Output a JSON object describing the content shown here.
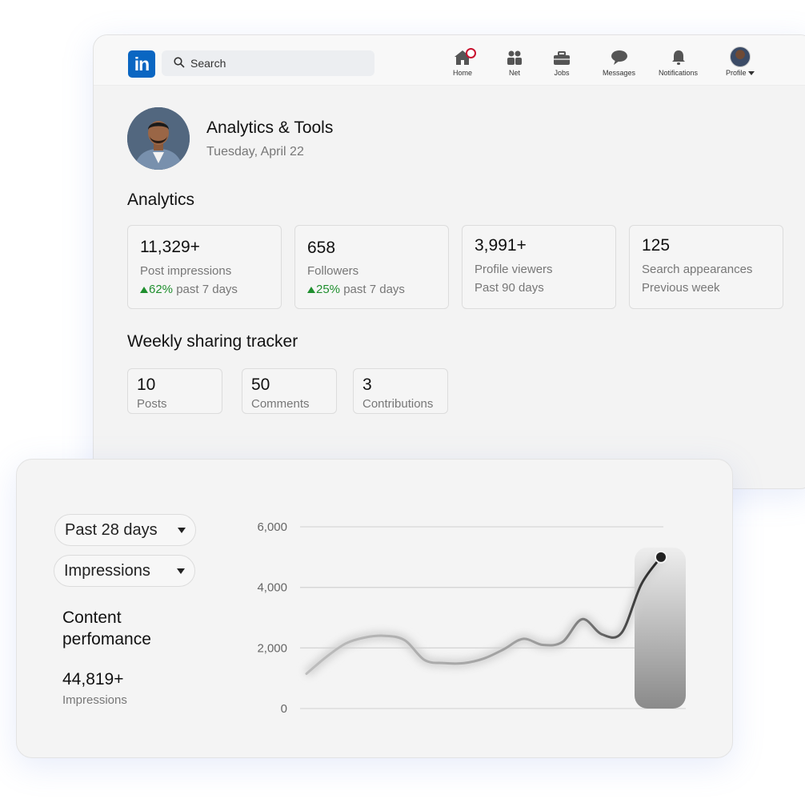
{
  "topbar": {
    "search_placeholder": "Search",
    "nav": [
      {
        "label": "Home",
        "icon": "home-icon"
      },
      {
        "label": "Net",
        "icon": "network-icon"
      },
      {
        "label": "Jobs",
        "icon": "briefcase-icon"
      },
      {
        "label": "Messages",
        "icon": "message-icon"
      },
      {
        "label": "Notifications",
        "icon": "bell-icon"
      },
      {
        "label": "Profile",
        "icon": "avatar"
      }
    ]
  },
  "header": {
    "title": "Analytics & Tools",
    "date": "Tuesday, April 22"
  },
  "analytics": {
    "title": "Analytics",
    "cards": [
      {
        "value": "11,329+",
        "label": "Post impressions",
        "trend": "62%",
        "sub": " past 7 days"
      },
      {
        "value": "658",
        "label": "Followers",
        "trend": "25%",
        "sub": " past 7 days"
      },
      {
        "value": "3,991+",
        "label": "Profile viewers",
        "sub": "Past 90 days"
      },
      {
        "value": "125",
        "label": "Search appearances",
        "sub": "Previous week"
      }
    ]
  },
  "tracker": {
    "title": "Weekly sharing tracker",
    "items": [
      {
        "value": "10",
        "label": "Posts"
      },
      {
        "value": "50",
        "label": "Comments"
      },
      {
        "value": "3",
        "label": "Contributions"
      }
    ]
  },
  "performance": {
    "range_select": "Past 28 days",
    "metric_select": "Impressions",
    "title": "Content perfomance",
    "value": "44,819+",
    "value_label": "Impressions"
  },
  "colors": {
    "brand": "#0a66c2",
    "trend_up": "#1f8f2e",
    "notification": "#c8102e"
  },
  "chart_data": {
    "type": "line",
    "ylim": [
      0,
      6000
    ],
    "yticks": [
      "6,000",
      "4,000",
      "2,000",
      "0"
    ],
    "ytick_values": [
      6000,
      4000,
      2000,
      0
    ],
    "grid": true,
    "series": [
      {
        "values": [
          1150,
          1700,
          2150,
          2350,
          2400,
          2250,
          1600,
          1500,
          1500,
          1650,
          1950,
          2300,
          2100,
          2200,
          2950,
          2450,
          2500,
          4100,
          5000
        ]
      }
    ]
  }
}
